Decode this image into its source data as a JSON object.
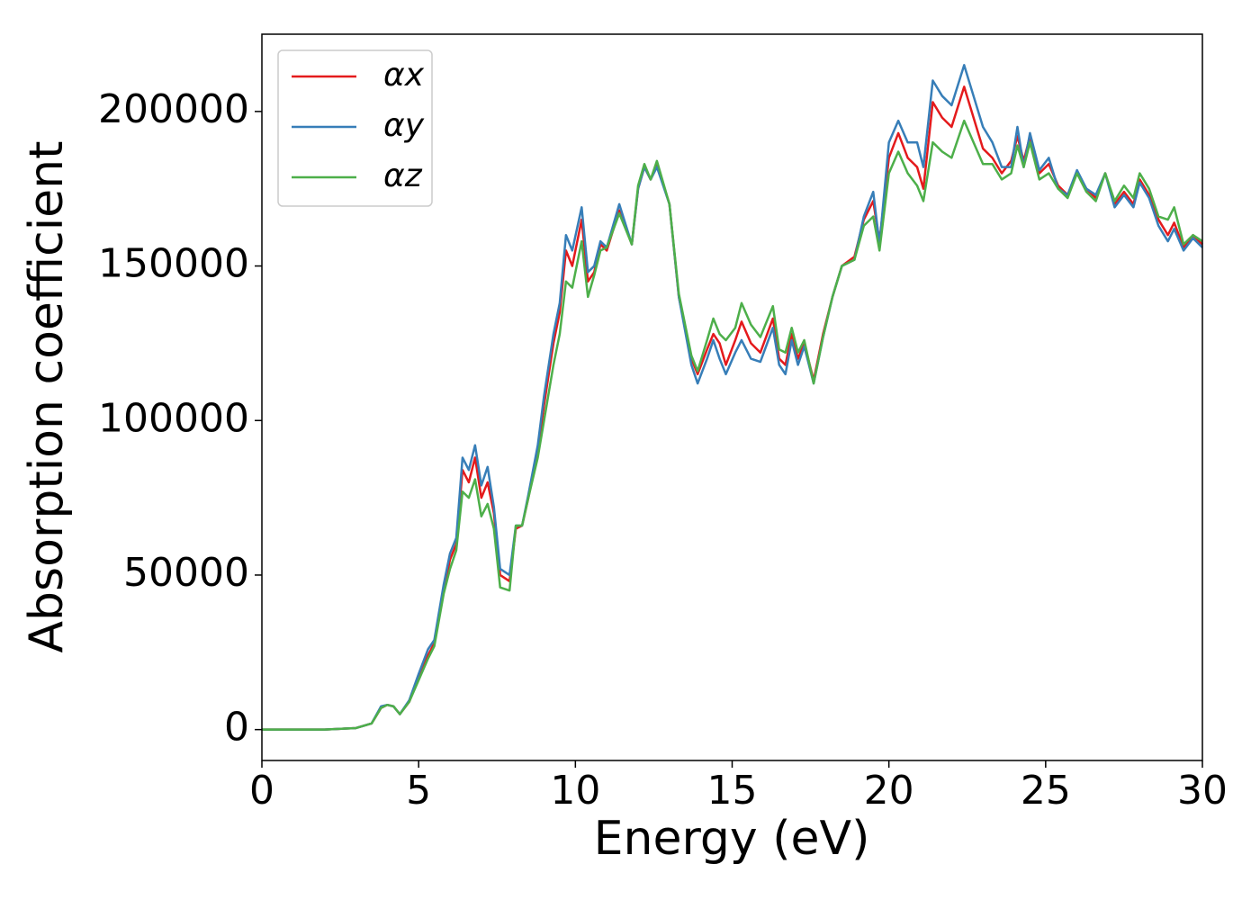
{
  "chart_data": {
    "type": "line",
    "x_label": "Energy (eV)",
    "y_label": "Absorption coefficient",
    "xlim": [
      0,
      30
    ],
    "ylim": [
      -10000,
      225000
    ],
    "xticks": [
      0,
      5,
      10,
      15,
      20,
      25,
      30
    ],
    "yticks": [
      0,
      50000,
      100000,
      150000,
      200000
    ],
    "legend": "upper left",
    "x": [
      0,
      1,
      2,
      3,
      3.5,
      3.8,
      4.0,
      4.2,
      4.4,
      4.7,
      5.0,
      5.3,
      5.5,
      5.8,
      6.0,
      6.2,
      6.4,
      6.6,
      6.8,
      7.0,
      7.2,
      7.4,
      7.6,
      7.9,
      8.1,
      8.3,
      8.5,
      8.8,
      9.0,
      9.3,
      9.5,
      9.7,
      9.9,
      10.2,
      10.4,
      10.6,
      10.8,
      11.0,
      11.4,
      11.8,
      12.0,
      12.2,
      12.4,
      12.6,
      13.0,
      13.3,
      13.7,
      13.9,
      14.2,
      14.4,
      14.6,
      14.8,
      15.1,
      15.3,
      15.6,
      15.9,
      16.3,
      16.5,
      16.7,
      16.9,
      17.1,
      17.3,
      17.6,
      17.9,
      18.2,
      18.5,
      18.9,
      19.2,
      19.5,
      19.7,
      20.0,
      20.3,
      20.6,
      20.9,
      21.1,
      21.4,
      21.7,
      22.0,
      22.4,
      22.7,
      23.0,
      23.3,
      23.6,
      23.9,
      24.1,
      24.3,
      24.5,
      24.8,
      25.1,
      25.4,
      25.7,
      26.0,
      26.3,
      26.6,
      26.9,
      27.2,
      27.5,
      27.8,
      28.0,
      28.3,
      28.6,
      28.9,
      29.1,
      29.4,
      29.7,
      30.0
    ],
    "series": [
      {
        "name": "αx",
        "color": "#e41a1c",
        "values": [
          0,
          0,
          0,
          500,
          2000,
          7000,
          8000,
          7500,
          5000,
          9000,
          17000,
          24000,
          28000,
          45000,
          55000,
          60000,
          84000,
          80000,
          88000,
          75000,
          80000,
          70000,
          50000,
          48000,
          65000,
          66000,
          75000,
          90000,
          105000,
          125000,
          135000,
          155000,
          150000,
          165000,
          145000,
          148000,
          157000,
          155000,
          168000,
          157000,
          175000,
          182000,
          178000,
          183000,
          170000,
          140000,
          120000,
          115000,
          123000,
          128000,
          125000,
          118000,
          126000,
          132000,
          125000,
          122000,
          133000,
          120000,
          118000,
          128000,
          120000,
          125000,
          113000,
          128000,
          140000,
          150000,
          153000,
          165000,
          171000,
          158000,
          185000,
          193000,
          185000,
          182000,
          175000,
          203000,
          198000,
          195000,
          208000,
          198000,
          188000,
          185000,
          180000,
          184000,
          192000,
          184000,
          192000,
          180000,
          183000,
          176000,
          173000,
          180000,
          175000,
          172000,
          180000,
          170000,
          174000,
          170000,
          178000,
          173000,
          165000,
          160000,
          164000,
          156000,
          160000,
          157000
        ]
      },
      {
        "name": "αy",
        "color": "#377eb8",
        "values": [
          0,
          0,
          0,
          500,
          2000,
          7500,
          8000,
          7500,
          5000,
          9500,
          18000,
          26000,
          29000,
          47000,
          57000,
          62000,
          88000,
          84000,
          92000,
          79000,
          85000,
          72000,
          52000,
          50000,
          66000,
          66000,
          76000,
          92000,
          108000,
          128000,
          138000,
          160000,
          155000,
          169000,
          148000,
          150000,
          158000,
          156000,
          170000,
          157000,
          175000,
          182000,
          178000,
          182000,
          170000,
          140000,
          118000,
          112000,
          120000,
          126000,
          120000,
          115000,
          122000,
          126000,
          120000,
          119000,
          130000,
          118000,
          115000,
          126000,
          118000,
          124000,
          112000,
          127000,
          140000,
          150000,
          152000,
          166000,
          174000,
          157000,
          190000,
          197000,
          190000,
          190000,
          182000,
          210000,
          205000,
          202000,
          215000,
          205000,
          195000,
          190000,
          182000,
          182000,
          195000,
          182000,
          193000,
          181000,
          185000,
          175000,
          173000,
          181000,
          175000,
          173000,
          180000,
          169000,
          173000,
          169000,
          177000,
          172000,
          163000,
          158000,
          162000,
          155000,
          159000,
          156000
        ]
      },
      {
        "name": "αz",
        "color": "#4daf4a",
        "values": [
          0,
          0,
          0,
          500,
          2000,
          7000,
          8000,
          7500,
          5000,
          9000,
          16000,
          23000,
          27000,
          44000,
          52000,
          58000,
          77000,
          75000,
          81000,
          69000,
          73000,
          65000,
          46000,
          45000,
          66000,
          66000,
          75000,
          88000,
          100000,
          118000,
          128000,
          145000,
          143000,
          158000,
          140000,
          147000,
          155000,
          156000,
          167000,
          157000,
          176000,
          183000,
          178000,
          184000,
          170000,
          141000,
          121000,
          116000,
          126000,
          133000,
          128000,
          126000,
          130000,
          138000,
          131000,
          127000,
          137000,
          123000,
          122000,
          130000,
          122000,
          126000,
          112000,
          127000,
          140000,
          150000,
          152000,
          163000,
          166000,
          155000,
          180000,
          187000,
          180000,
          176000,
          171000,
          190000,
          187000,
          185000,
          197000,
          190000,
          183000,
          183000,
          178000,
          180000,
          189000,
          182000,
          190000,
          178000,
          180000,
          175000,
          172000,
          180000,
          174000,
          171000,
          180000,
          171000,
          176000,
          172000,
          180000,
          175000,
          166000,
          165000,
          169000,
          157000,
          160000,
          158000
        ]
      }
    ]
  }
}
